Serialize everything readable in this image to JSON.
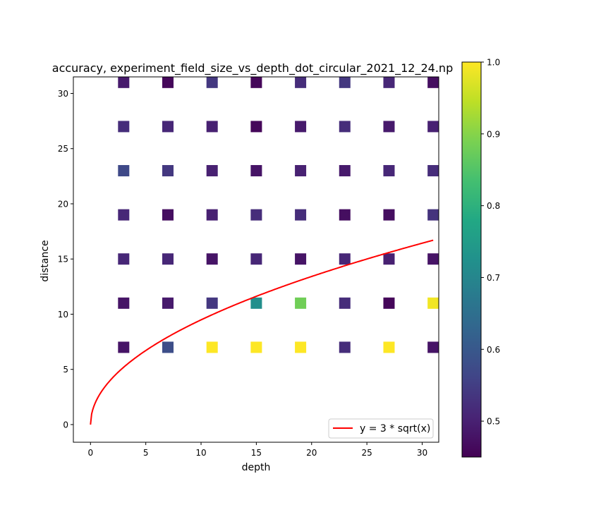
{
  "chart_data": {
    "type": "heatmap",
    "title": "accuracy, experiment_field_size_vs_depth_dot_circular_2021_12_24.np",
    "xlabel": "depth",
    "ylabel": "distance",
    "xlim": [
      -1.55,
      31.5
    ],
    "ylim": [
      -1.6,
      31.5
    ],
    "x_ticks": [
      0,
      5,
      10,
      15,
      20,
      25,
      30
    ],
    "y_ticks": [
      0,
      5,
      10,
      15,
      20,
      25,
      30
    ],
    "x_values": [
      3,
      7,
      11,
      15,
      19,
      23,
      27,
      31
    ],
    "y_values": [
      31,
      27,
      23,
      19,
      15,
      11,
      7
    ],
    "accuracy": [
      [
        0.49,
        0.46,
        0.54,
        0.46,
        0.52,
        0.54,
        0.51,
        0.47
      ],
      [
        0.52,
        0.51,
        0.5,
        0.46,
        0.49,
        0.52,
        0.49,
        0.5
      ],
      [
        0.57,
        0.54,
        0.5,
        0.48,
        0.5,
        0.49,
        0.51,
        0.52
      ],
      [
        0.51,
        0.47,
        0.5,
        0.52,
        0.52,
        0.47,
        0.47,
        0.53
      ],
      [
        0.51,
        0.51,
        0.48,
        0.51,
        0.48,
        0.51,
        0.5,
        0.48
      ],
      [
        0.48,
        0.49,
        0.54,
        0.72,
        0.88,
        0.52,
        0.46,
        0.99
      ],
      [
        0.48,
        0.58,
        1.0,
        1.0,
        1.0,
        0.52,
        1.0,
        0.48
      ]
    ],
    "colorbar": {
      "colormap": "viridis",
      "min": 0.45,
      "max": 1.0,
      "ticks": [
        "0.5",
        "0.6",
        "0.7",
        "0.8",
        "0.9",
        "1.0"
      ],
      "tick_values": [
        0.5,
        0.6,
        0.7,
        0.8,
        0.9,
        1.0
      ]
    },
    "curve": {
      "formula": "y = 3 * sqrt(x)",
      "label": "y = 3 * sqrt(x)",
      "color": "#ff0000",
      "x_range": [
        0,
        31
      ]
    },
    "legend_placement": "lower-right",
    "grid": false
  }
}
